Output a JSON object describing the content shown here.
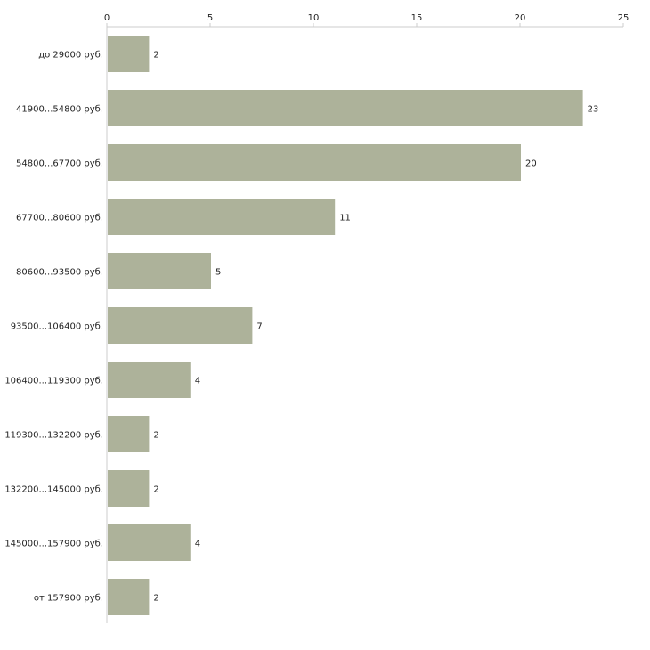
{
  "chart_data": {
    "type": "bar",
    "orientation": "horizontal",
    "title": "",
    "xlabel": "",
    "ylabel": "",
    "xlim": [
      0,
      25
    ],
    "x_ticks": [
      0,
      5,
      10,
      15,
      20,
      25
    ],
    "x_axis_position": "top",
    "grid": false,
    "bar_color": "#adb29a",
    "categories": [
      "до 29000 руб.",
      "41900...54800 руб.",
      "54800...67700 руб.",
      "67700...80600 руб.",
      "80600...93500 руб.",
      "93500...106400 руб.",
      "106400...119300 руб.",
      "119300...132200 руб.",
      "132200...145000 руб.",
      "145000...157900 руб.",
      "от 157900 руб."
    ],
    "values": [
      2,
      23,
      20,
      11,
      5,
      7,
      4,
      2,
      2,
      4,
      2
    ]
  }
}
